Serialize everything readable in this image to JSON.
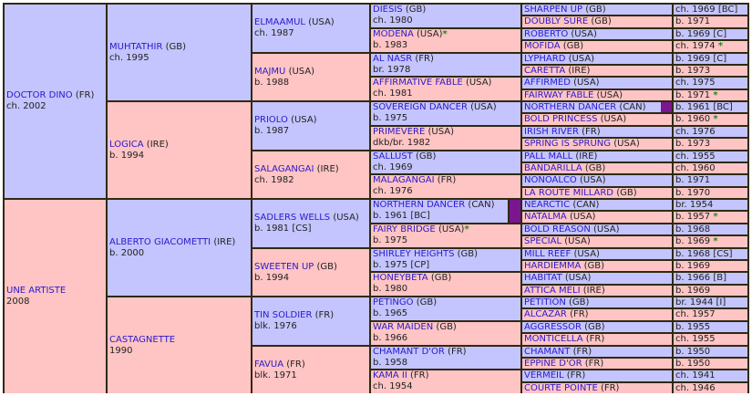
{
  "pedigree": {
    "colors": {
      "sire_bg": "#c4c4fe",
      "dam_bg": "#ffc4c4",
      "border": "#2e2a12",
      "name_link": "#2a1acb",
      "star": "#1a8a1a",
      "inbreeding_marker": "#7c1590"
    },
    "gen1": [
      {
        "name": "DOCTOR DINO",
        "country": "(FR)",
        "details": "ch. 2002"
      },
      {
        "name": "UNE ARTISTE",
        "country": "",
        "details": "2008"
      }
    ],
    "gen2": [
      {
        "name": "MUHTATHIR",
        "country": "(GB)",
        "details": "ch. 1995"
      },
      {
        "name": "LOGICA",
        "country": "(IRE)",
        "details": "b. 1994"
      },
      {
        "name": "ALBERTO GIACOMETTI",
        "country": "(IRE)",
        "details": "b. 2000"
      },
      {
        "name": "CASTAGNETTE",
        "country": "",
        "details": "1990"
      }
    ],
    "gen3": [
      {
        "name": "ELMAAMUL",
        "country": "(USA)",
        "details": "ch. 1987"
      },
      {
        "name": "MAJMU",
        "country": "(USA)",
        "details": "b. 1988"
      },
      {
        "name": "PRIOLO",
        "country": "(USA)",
        "details": "b. 1987"
      },
      {
        "name": "SALAGANGAI",
        "country": "(IRE)",
        "details": "ch. 1982"
      },
      {
        "name": "SADLERS WELLS",
        "country": "(USA)",
        "details": "b. 1981 [CS]"
      },
      {
        "name": "SWEETEN UP",
        "country": "(GB)",
        "details": "b. 1994"
      },
      {
        "name": "TIN SOLDIER",
        "country": "(FR)",
        "details": "blk. 1976"
      },
      {
        "name": "FAVUA",
        "country": "(FR)",
        "details": "blk. 1971"
      }
    ],
    "gen4": [
      {
        "name": "DIESIS",
        "country": "(GB)",
        "star": "",
        "details": "ch. 1980"
      },
      {
        "name": "MODENA",
        "country": "(USA)",
        "star": "*",
        "details": "b. 1983"
      },
      {
        "name": "AL NASR",
        "country": "(FR)",
        "star": "",
        "details": "br. 1978"
      },
      {
        "name": "AFFIRMATIVE FABLE",
        "country": "(USA)",
        "star": "",
        "details": "ch. 1981"
      },
      {
        "name": "SOVEREIGN DANCER",
        "country": "(USA)",
        "star": "",
        "details": "b. 1975"
      },
      {
        "name": "PRIMEVERE",
        "country": "(USA)",
        "star": "",
        "details": "dkb/br. 1982"
      },
      {
        "name": "SALLUST",
        "country": "(GB)",
        "star": "",
        "details": "ch. 1969"
      },
      {
        "name": "MALAGANGAI",
        "country": "(FR)",
        "star": "",
        "details": "ch. 1976"
      },
      {
        "name": "NORTHERN DANCER",
        "country": "(CAN)",
        "star": "",
        "details": "b. 1961 [BC]",
        "dup": true
      },
      {
        "name": "FAIRY BRIDGE",
        "country": "(USA)",
        "star": "*",
        "details": "b. 1975"
      },
      {
        "name": "SHIRLEY HEIGHTS",
        "country": "(GB)",
        "star": "",
        "details": "b. 1975 [CP]"
      },
      {
        "name": "HONEYBETA",
        "country": "(GB)",
        "star": "",
        "details": "b. 1980"
      },
      {
        "name": "PETINGO",
        "country": "(GB)",
        "star": "",
        "details": "b. 1965"
      },
      {
        "name": "WAR MAIDEN",
        "country": "(GB)",
        "star": "",
        "details": "b. 1966"
      },
      {
        "name": "CHAMANT D'OR",
        "country": "(FR)",
        "star": "",
        "details": "b. 1958"
      },
      {
        "name": "KAMA II",
        "country": "(FR)",
        "star": "",
        "details": "ch. 1954"
      }
    ],
    "gen5": [
      {
        "name": "SHARPEN UP",
        "country": "(GB)",
        "details": "ch. 1969 [BC]",
        "star": ""
      },
      {
        "name": "DOUBLY SURE",
        "country": "(GB)",
        "details": "b. 1971",
        "star": ""
      },
      {
        "name": "ROBERTO",
        "country": "(USA)",
        "details": "b. 1969 [C]",
        "star": ""
      },
      {
        "name": "MOFIDA",
        "country": "(GB)",
        "details": "ch. 1974",
        "star": "*"
      },
      {
        "name": "LYPHARD",
        "country": "(USA)",
        "details": "b. 1969 [C]",
        "star": ""
      },
      {
        "name": "CARETTA",
        "country": "(IRE)",
        "details": "b. 1973",
        "star": ""
      },
      {
        "name": "AFFIRMED",
        "country": "(USA)",
        "details": "ch. 1975",
        "star": ""
      },
      {
        "name": "FAIRWAY FABLE",
        "country": "(USA)",
        "details": "b. 1971",
        "star": "*"
      },
      {
        "name": "NORTHERN DANCER",
        "country": "(CAN)",
        "details": "b. 1961 [BC]",
        "star": "",
        "dup": true
      },
      {
        "name": "BOLD PRINCESS",
        "country": "(USA)",
        "details": "b. 1960",
        "star": "*"
      },
      {
        "name": "IRISH RIVER",
        "country": "(FR)",
        "details": "ch. 1976",
        "star": ""
      },
      {
        "name": "SPRING IS SPRUNG",
        "country": "(USA)",
        "details": "b. 1973",
        "star": ""
      },
      {
        "name": "PALL MALL",
        "country": "(IRE)",
        "details": "ch. 1955",
        "star": ""
      },
      {
        "name": "BANDARILLA",
        "country": "(GB)",
        "details": "ch. 1960",
        "star": ""
      },
      {
        "name": "NONOALCO",
        "country": "(USA)",
        "details": "b. 1971",
        "star": ""
      },
      {
        "name": "LA ROUTE MILLARD",
        "country": "(GB)",
        "details": "b. 1970",
        "star": ""
      },
      {
        "name": "NEARCTIC",
        "country": "(CAN)",
        "details": "br. 1954",
        "star": ""
      },
      {
        "name": "NATALMA",
        "country": "(USA)",
        "details": "b. 1957",
        "star": "*"
      },
      {
        "name": "BOLD REASON",
        "country": "(USA)",
        "details": "b. 1968",
        "star": ""
      },
      {
        "name": "SPECIAL",
        "country": "(USA)",
        "details": "b. 1969",
        "star": "*"
      },
      {
        "name": "MILL REEF",
        "country": "(USA)",
        "details": "b. 1968 [CS]",
        "star": ""
      },
      {
        "name": "HARDIEMMA",
        "country": "(GB)",
        "details": "b. 1969",
        "star": ""
      },
      {
        "name": "HABITAT",
        "country": "(USA)",
        "details": "b. 1966 [B]",
        "star": ""
      },
      {
        "name": "ATTICA MELI",
        "country": "(IRE)",
        "details": "b. 1969",
        "star": ""
      },
      {
        "name": "PETITION",
        "country": "(GB)",
        "details": "br. 1944 [I]",
        "star": ""
      },
      {
        "name": "ALCAZAR",
        "country": "(FR)",
        "details": "ch. 1957",
        "star": ""
      },
      {
        "name": "AGGRESSOR",
        "country": "(GB)",
        "details": "b. 1955",
        "star": ""
      },
      {
        "name": "MONTICELLA",
        "country": "(FR)",
        "details": "ch. 1955",
        "star": ""
      },
      {
        "name": "CHAMANT",
        "country": "(FR)",
        "details": "b. 1950",
        "star": ""
      },
      {
        "name": "EPPINE D'OR",
        "country": "(FR)",
        "details": "b. 1950",
        "star": ""
      },
      {
        "name": "VERMEIL",
        "country": "(FR)",
        "details": "ch. 1941",
        "star": ""
      },
      {
        "name": "COURTE POINTE",
        "country": "(FR)",
        "details": "ch. 1946",
        "star": ""
      }
    ]
  }
}
